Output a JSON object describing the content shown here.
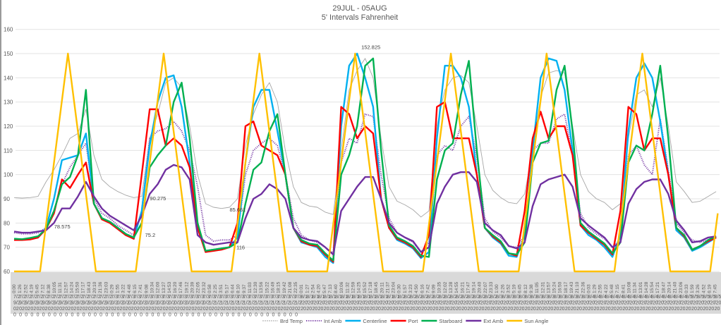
{
  "chart_data": {
    "type": "line",
    "title": "29JUL - 05AUG",
    "subtitle": "5' Intervals Fahrenheit",
    "xlabel": "",
    "ylabel": "",
    "ylim": [
      60,
      160
    ],
    "yticks": [
      60,
      70,
      80,
      90,
      100,
      110,
      120,
      130,
      140,
      150,
      160
    ],
    "grid": true,
    "legend_position": "bottom",
    "x_unit": "hours since 7/29/2020 0:00",
    "x_range": [
      0,
      176.4
    ],
    "x": [
      0,
      2,
      4,
      6,
      8,
      10,
      12,
      14,
      16,
      18,
      20,
      22,
      24,
      26,
      28,
      30,
      32,
      34,
      36,
      38,
      40,
      42,
      44,
      46,
      48,
      50,
      52,
      54,
      56,
      58,
      60,
      62,
      64,
      66,
      68,
      70,
      72,
      74,
      76,
      78,
      80,
      82,
      84,
      86,
      88,
      90,
      92,
      94,
      96,
      98,
      100,
      102,
      104,
      106,
      108,
      110,
      112,
      114,
      116,
      118,
      120,
      122,
      124,
      126,
      128,
      130,
      132,
      134,
      136,
      138,
      140,
      142,
      144,
      146,
      148,
      150,
      152,
      154,
      156,
      158,
      160,
      162,
      164,
      166,
      168,
      170,
      172,
      174,
      176
    ],
    "series": [
      {
        "name": "Brd Temp",
        "color": "#a6a6a6",
        "style": "thin",
        "values": [
          90.5,
          90.3,
          90.5,
          91,
          97,
          102,
          108,
          115,
          117,
          127,
          108,
          98,
          95,
          93,
          91.5,
          90.5,
          91,
          115,
          125,
          138,
          140,
          136,
          120,
          100,
          88,
          86.5,
          86,
          86.5,
          90,
          112,
          125,
          133,
          138,
          130,
          110,
          95,
          88.5,
          87,
          86.5,
          84.5,
          83.5,
          110,
          135,
          143,
          148,
          140,
          115,
          95,
          89,
          87.5,
          85.5,
          82.5,
          85,
          120,
          135,
          140,
          141,
          138,
          120,
          100,
          93.5,
          90.5,
          88.5,
          88,
          92,
          110,
          132,
          142,
          143,
          142,
          120,
          100,
          93,
          90,
          88.5,
          85.5,
          88,
          115,
          133,
          135,
          128,
          140,
          120,
          97,
          93,
          88.5,
          89,
          91,
          93
        ]
      },
      {
        "name": "Int Amb",
        "color": "#7030a0",
        "style": "dotted",
        "values": [
          76,
          75.5,
          75.5,
          76,
          78,
          85,
          96,
          103,
          108,
          113,
          90,
          84,
          82,
          79,
          77,
          75,
          85,
          115,
          118,
          119,
          122,
          118,
          110,
          95,
          75,
          72.5,
          73,
          73,
          75,
          100,
          110,
          113,
          115,
          112,
          100,
          82,
          75,
          73,
          72,
          70,
          67.5,
          105,
          115,
          113,
          125,
          124,
          100,
          82,
          76,
          74,
          72,
          68,
          72,
          108,
          112,
          110,
          120,
          124,
          107,
          82,
          76.5,
          74,
          70.5,
          70,
          75,
          110,
          113,
          113,
          123,
          125,
          108,
          84,
          78,
          75.5,
          73.5,
          70,
          73,
          108,
          112,
          104,
          100,
          123,
          102,
          80,
          76,
          73,
          72,
          73,
          74
        ]
      },
      {
        "name": "Centerline",
        "color": "#00b0f0",
        "style": "solid",
        "values": [
          73.5,
          73.2,
          73.5,
          74,
          78,
          90,
          106,
          107,
          108,
          117,
          88,
          82,
          80.5,
          78,
          75.5,
          73.5,
          85,
          112,
          130,
          140,
          141,
          128,
          105,
          78,
          68.5,
          69,
          69.5,
          70,
          74,
          105,
          128,
          135,
          135,
          118,
          100,
          78,
          72,
          71,
          70,
          66,
          63.5,
          120,
          145,
          150,
          140,
          128,
          90,
          78,
          73,
          71.5,
          69.5,
          65.5,
          68,
          115,
          145,
          145,
          140,
          128,
          100,
          78,
          74,
          71.5,
          66.5,
          66,
          75,
          110,
          140,
          148,
          147,
          135,
          110,
          79,
          75,
          73,
          70,
          66,
          75,
          118,
          140,
          146,
          140,
          122,
          100,
          77,
          74,
          68.5,
          70,
          72,
          74
        ]
      },
      {
        "name": "Port",
        "color": "#ff0000",
        "style": "solid",
        "values": [
          73,
          73,
          73.2,
          74,
          77.5,
          84,
          98,
          94.5,
          100,
          105,
          88,
          81.5,
          80,
          77.5,
          75,
          73.5,
          100,
          127,
          127,
          112,
          115,
          112,
          103,
          78,
          68,
          68.5,
          69,
          70,
          80,
          120,
          122,
          112,
          110,
          108,
          100,
          78,
          72.5,
          71,
          70.5,
          67,
          64,
          128,
          125,
          115,
          120,
          117,
          90,
          78,
          73.5,
          72,
          70,
          66,
          75,
          128,
          130,
          115,
          115,
          115,
          100,
          78,
          74.5,
          72,
          67.5,
          66.5,
          85,
          115,
          126,
          115,
          120,
          120,
          108,
          79,
          76,
          73.5,
          71,
          67,
          85,
          128,
          125,
          110,
          115,
          115,
          100,
          78,
          74.5,
          69,
          70.5,
          72.5,
          74
        ]
      },
      {
        "name": "Starboard",
        "color": "#00b050",
        "style": "solid",
        "values": [
          73.5,
          73.3,
          73.8,
          74.5,
          77.5,
          85,
          96,
          99,
          108,
          135,
          88,
          82,
          80.5,
          78,
          75.5,
          74,
          80,
          103,
          108,
          112,
          130,
          138,
          115,
          80,
          68.5,
          69,
          69.5,
          70,
          72,
          88,
          102,
          105,
          118,
          125,
          100,
          78,
          73,
          71.5,
          71,
          67.5,
          64.5,
          100,
          108,
          120,
          145,
          148,
          110,
          79,
          74,
          72.5,
          70.5,
          66.5,
          66,
          98,
          110,
          113,
          133,
          147,
          110,
          78,
          75,
          72.5,
          67.5,
          67,
          72,
          105,
          113,
          114,
          135,
          145,
          118,
          80,
          76.5,
          74,
          71.5,
          67.5,
          72,
          105,
          112,
          110,
          125,
          145,
          115,
          78,
          75,
          69,
          70.5,
          73,
          74.5
        ]
      },
      {
        "name": "Ext Amb",
        "color": "#7030a0",
        "style": "solid",
        "values": [
          76.5,
          76,
          76,
          76.5,
          77,
          80,
          86,
          86,
          91,
          97,
          91,
          86,
          83,
          81,
          79,
          77,
          83,
          92,
          96,
          102,
          104,
          103,
          98,
          75,
          72,
          71,
          71.5,
          72,
          72,
          82,
          90,
          92,
          96,
          94,
          90,
          78,
          74,
          73,
          72.5,
          70,
          67,
          85,
          90,
          95,
          99,
          99,
          90,
          80,
          76,
          74,
          72.5,
          68,
          70,
          88,
          95,
          100,
          101,
          101,
          97,
          80,
          77,
          75,
          70.5,
          69.5,
          72,
          87,
          96,
          98,
          99,
          100,
          95,
          82,
          79,
          76.5,
          74,
          70,
          72,
          88,
          94,
          97,
          98,
          98,
          92,
          81,
          77,
          72,
          72.5,
          74,
          74.5
        ]
      },
      {
        "name": "Sun Angle",
        "color": "#ffc000",
        "style": "solid",
        "points": [
          [
            0,
            60
          ],
          [
            6.5,
            60
          ],
          [
            13.5,
            150
          ],
          [
            20.5,
            60
          ],
          [
            30.5,
            60
          ],
          [
            37.5,
            150
          ],
          [
            44.5,
            60
          ],
          [
            54.5,
            60
          ],
          [
            61.5,
            150
          ],
          [
            68.5,
            60
          ],
          [
            78.5,
            60
          ],
          [
            85.5,
            150
          ],
          [
            92.5,
            60
          ],
          [
            102.5,
            60
          ],
          [
            109.5,
            150
          ],
          [
            116.5,
            60
          ],
          [
            126.5,
            60
          ],
          [
            133.5,
            150
          ],
          [
            140.5,
            60
          ],
          [
            150.5,
            60
          ],
          [
            157.5,
            150
          ],
          [
            164.5,
            60
          ],
          [
            174.5,
            60
          ],
          [
            176.4,
            84
          ]
        ]
      }
    ],
    "annotations": [
      {
        "text": "78.575",
        "x": 9.5,
        "y": 78.575
      },
      {
        "text": "90.275",
        "x": 33.5,
        "y": 90.275
      },
      {
        "text": "75.2",
        "x": 32.3,
        "y": 75.2
      },
      {
        "text": "85.661",
        "x": 53.5,
        "y": 85.661
      },
      {
        "text": "116",
        "x": 55.2,
        "y": 70.1
      },
      {
        "text": "152.825",
        "x": 86.5,
        "y": 152.825
      }
    ],
    "x_tick_times": [
      "0:00",
      "1:26",
      "2:52",
      "4:19",
      "5:45",
      "7:12",
      "8:38",
      "10:05",
      "11:31",
      "12:57",
      "14:24",
      "15:50",
      "17:17",
      "18:43",
      "20:10",
      "21:36",
      "23:03",
      "0:29",
      "1:55",
      "3:22",
      "4:48",
      "6:15",
      "7:41",
      "9:08",
      "10:34",
      "12:00",
      "13:27",
      "14:53",
      "16:20",
      "17:46",
      "19:12",
      "20:39",
      "22:05",
      "23:32",
      "0:58",
      "2:25",
      "3:51",
      "5:17",
      "6:44",
      "8:10",
      "9:37",
      "11:03",
      "12:30",
      "13:56",
      "15:22",
      "16:49",
      "18:15",
      "19:42",
      "21:08",
      "22:35",
      "0:01",
      "1:27",
      "2:54",
      "4:20",
      "5:47",
      "7:13",
      "8:40",
      "10:06",
      "11:32",
      "12:59",
      "14:25",
      "15:52",
      "17:18",
      "18:45",
      "20:11",
      "21:37",
      "23:04",
      "0:30",
      "1:57",
      "3:23",
      "4:50",
      "6:16",
      "7:42",
      "9:09",
      "10:35",
      "12:02",
      "13:28",
      "14:55",
      "16:21",
      "17:47",
      "19:14",
      "20:40",
      "22:07",
      "23:33",
      "1:00",
      "2:26",
      "3:52",
      "5:19",
      "6:45",
      "8:12",
      "9:38",
      "11:05",
      "12:31",
      "13:57",
      "15:24",
      "16:50",
      "18:17",
      "19:43",
      "21:10",
      "22:36",
      "0:03",
      "1:29",
      "2:55",
      "4:22",
      "5:48",
      "7:15",
      "8:41",
      "10:08",
      "11:34",
      "13:01",
      "14:28",
      "15:54",
      "17:21",
      "18:47",
      "20:14",
      "21:40",
      "23:06",
      "0:33",
      "1:59",
      "3:26",
      "4:52",
      "6:19",
      "7:45"
    ],
    "x_tick_dates": [
      "7/29/2020",
      "7/29/2020",
      "7/29/2020",
      "7/29/2020",
      "7/29/2020",
      "7/29/2020",
      "7/29/2020",
      "7/29/2020",
      "7/29/2020",
      "7/29/2020",
      "7/29/2020",
      "7/29/2020",
      "7/29/2020",
      "7/29/2020",
      "7/29/2020",
      "7/29/2020",
      "7/29/2020",
      "7/30/2020",
      "7/30/2020",
      "7/30/2020",
      "7/30/2020",
      "7/30/2020",
      "7/30/2020",
      "7/30/2020",
      "7/30/2020",
      "7/30/2020",
      "7/30/2020",
      "7/30/2020",
      "7/30/2020",
      "7/30/2020",
      "7/30/2020",
      "7/30/2020",
      "7/30/2020",
      "7/30/2020",
      "7/31/2020",
      "7/31/2020",
      "7/31/2020",
      "7/31/2020",
      "7/31/2020",
      "7/31/2020",
      "7/31/2020",
      "7/31/2020",
      "7/31/2020",
      "7/31/2020",
      "7/31/2020",
      "7/31/2020",
      "7/31/2020",
      "7/31/2020",
      "7/31/2020",
      "7/31/2020",
      "8/1/2020",
      "8/1/2020",
      "8/1/2020",
      "8/1/2020",
      "8/1/2020",
      "8/1/2020",
      "8/1/2020",
      "8/1/2020",
      "8/1/2020",
      "8/1/2020",
      "8/1/2020",
      "8/1/2020",
      "8/1/2020",
      "8/1/2020",
      "8/1/2020",
      "8/1/2020",
      "8/1/2020",
      "8/2/2020",
      "8/2/2020",
      "8/2/2020",
      "8/2/2020",
      "8/2/2020",
      "8/2/2020",
      "8/2/2020",
      "8/2/2020",
      "8/2/2020",
      "8/2/2020",
      "8/2/2020",
      "8/2/2020",
      "8/2/2020",
      "8/2/2020",
      "8/2/2020",
      "8/2/2020",
      "8/2/2020",
      "8/3/2020",
      "8/3/2020",
      "8/3/2020",
      "8/3/2020",
      "8/3/2020",
      "8/3/2020",
      "8/3/2020",
      "8/3/2020",
      "8/3/2020",
      "8/3/2020",
      "8/3/2020",
      "8/3/2020",
      "8/3/2020",
      "8/3/2020",
      "8/3/2020",
      "8/3/2020",
      "8/4/2020",
      "8/4/2020",
      "8/4/2020",
      "8/4/2020",
      "8/4/2020",
      "8/4/2020",
      "8/4/2020",
      "8/4/2020",
      "8/4/2020",
      "8/4/2020",
      "8/4/2020",
      "8/4/2020",
      "8/4/2020",
      "8/4/2020",
      "8/4/2020",
      "8/4/2020",
      "8/4/2020",
      "8/5/2020",
      "8/5/2020",
      "8/5/2020",
      "8/5/2020",
      "8/5/2020",
      "8/5/2020"
    ],
    "x_tick_step_hours": 1.4405
  }
}
